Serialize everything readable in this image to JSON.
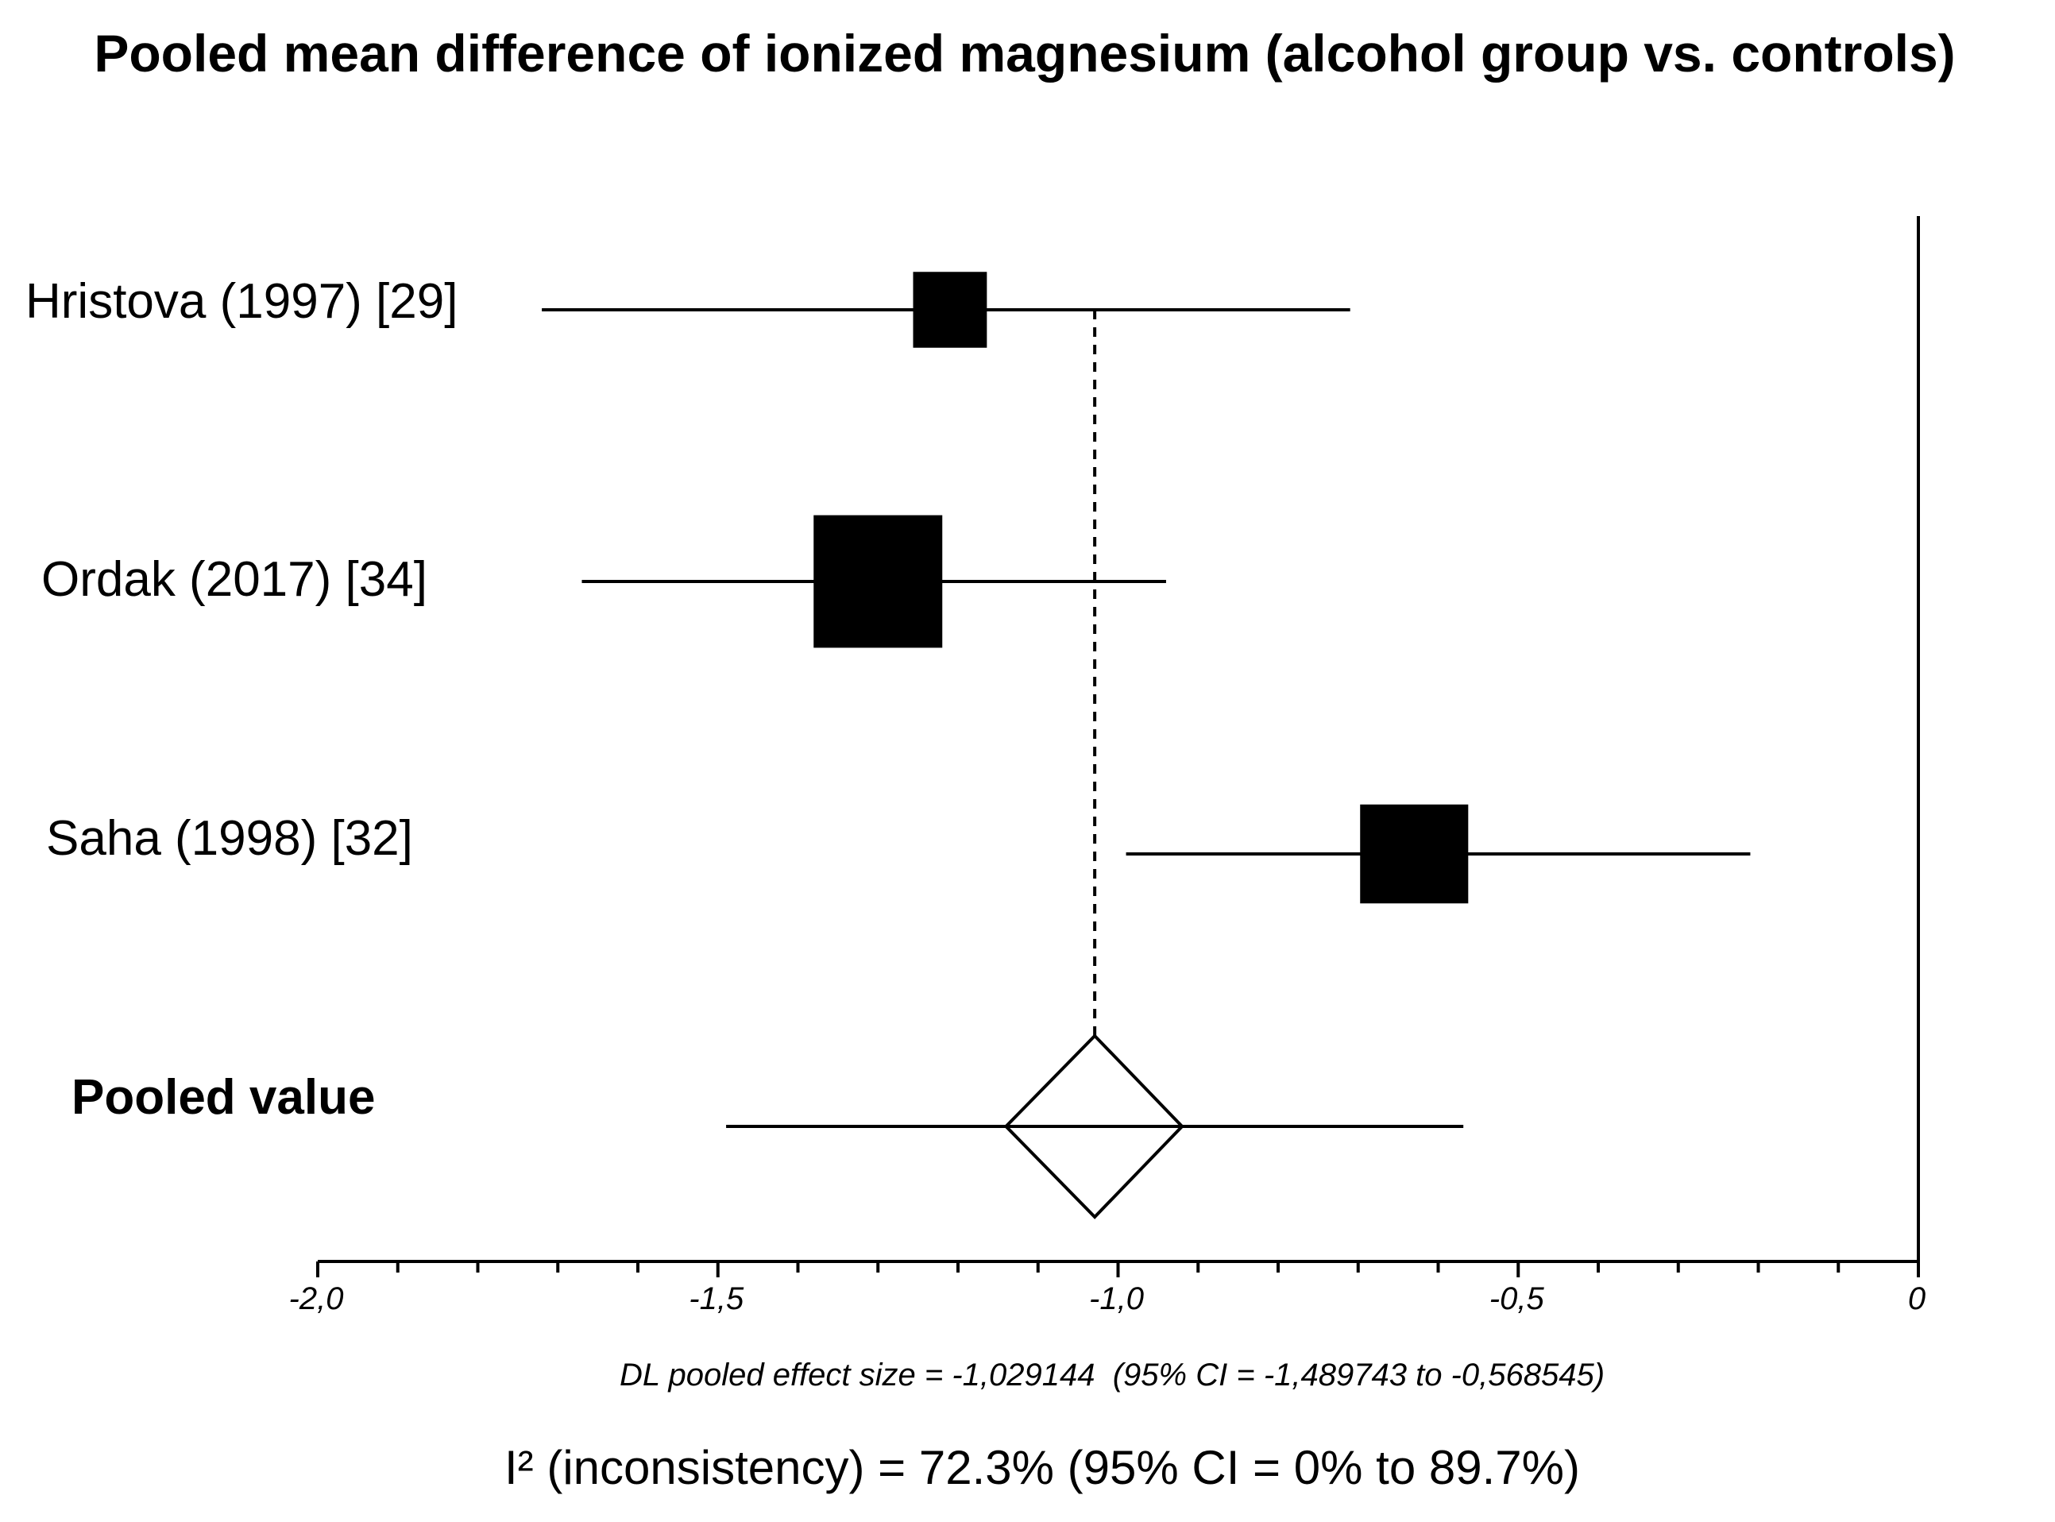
{
  "chart_data": {
    "type": "forest",
    "title": "Pooled mean difference of ionized magnesium (alcohol group vs. controls)",
    "xlim": [
      -2.0,
      0.0
    ],
    "major_ticks": [
      -2.0,
      -1.5,
      -1.0,
      -0.5,
      0.0
    ],
    "minor_tick_step": 0.1,
    "tick_labels": [
      "-2,0",
      "-1,5",
      "-1,0",
      "-0,5",
      "0"
    ],
    "studies": [
      {
        "label": "Hristova (1997) [29]",
        "effect": -1.21,
        "ci_low": -1.72,
        "ci_high": -0.71,
        "weight": 0.25
      },
      {
        "label": "Ordak (2017) [34]",
        "effect": -1.3,
        "ci_low": -1.67,
        "ci_high": -0.94,
        "weight": 1.0
      },
      {
        "label": "Saha (1998) [32]",
        "effect": -0.63,
        "ci_low": -0.99,
        "ci_high": -0.21,
        "weight": 0.59
      }
    ],
    "pooled": {
      "label": "Pooled value",
      "effect": -1.029144,
      "ci_low": -1.489743,
      "ci_high": -0.568545,
      "diamond_low": -1.14,
      "diamond_high": -0.92
    },
    "summary_line": "DL pooled effect size = -1,029144  (95% CI = -1,489743 to -0,568545)",
    "heterogeneity": "I² (inconsistency) = 72.3% (95% CI = 0% to 89.7%)"
  }
}
